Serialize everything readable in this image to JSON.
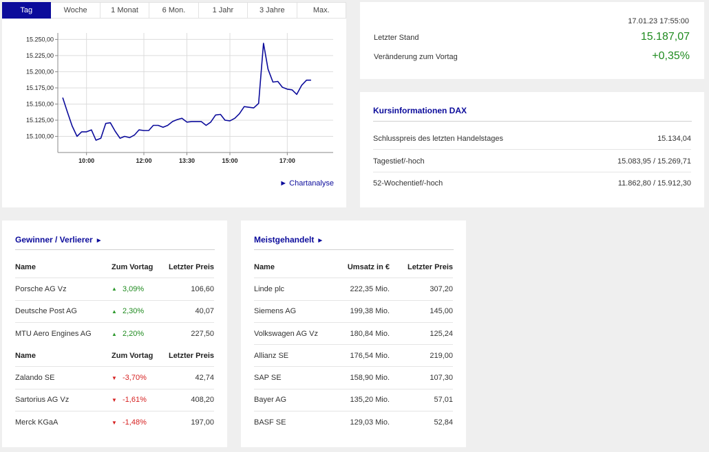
{
  "chart": {
    "tabs": [
      {
        "label": "Tag",
        "active": true
      },
      {
        "label": "Woche",
        "active": false
      },
      {
        "label": "1 Monat",
        "active": false
      },
      {
        "label": "6 Mon.",
        "active": false
      },
      {
        "label": "1 Jahr",
        "active": false
      },
      {
        "label": "3 Jahre",
        "active": false
      },
      {
        "label": "Max.",
        "active": false
      }
    ],
    "link_label": "Chartanalyse",
    "link_arrow": "►",
    "line_color": "#0b0b9b"
  },
  "chart_data": {
    "type": "line",
    "x_unit": "time of day (hours)",
    "xlim": [
      9.0,
      18.6
    ],
    "ylim": [
      15075,
      15260
    ],
    "xticks": [
      {
        "value": 10.0,
        "label": "10:00"
      },
      {
        "value": 12.0,
        "label": "12:00"
      },
      {
        "value": 13.5,
        "label": "13:30"
      },
      {
        "value": 15.0,
        "label": "15:00"
      },
      {
        "value": 17.0,
        "label": "17:00"
      }
    ],
    "yticks": [
      {
        "value": 15100,
        "label": "15.100,00"
      },
      {
        "value": 15125,
        "label": "15.125,00"
      },
      {
        "value": 15150,
        "label": "15.150,00"
      },
      {
        "value": 15175,
        "label": "15.175,00"
      },
      {
        "value": 15200,
        "label": "15.200,00"
      },
      {
        "value": 15225,
        "label": "15.225,00"
      },
      {
        "value": 15250,
        "label": "15.250,00"
      }
    ],
    "grid": true,
    "series": [
      {
        "x": [
          9.17,
          9.33,
          9.5,
          9.67,
          9.83,
          10.0,
          10.17,
          10.33,
          10.5,
          10.67,
          10.83,
          11.0,
          11.17,
          11.33,
          11.5,
          11.67,
          11.83,
          12.0,
          12.17,
          12.33,
          12.5,
          12.67,
          12.83,
          13.0,
          13.17,
          13.33,
          13.5,
          13.67,
          13.83,
          14.0,
          14.17,
          14.33,
          14.5,
          14.67,
          14.83,
          15.0,
          15.17,
          15.33,
          15.5,
          15.67,
          15.83,
          16.0,
          16.17,
          16.33,
          16.5,
          16.67,
          16.83,
          17.0,
          17.17,
          17.33,
          17.5,
          17.67,
          17.83
        ],
        "y": [
          15160,
          15138,
          15116,
          15100,
          15107,
          15107,
          15110,
          15094,
          15097,
          15120,
          15121,
          15108,
          15097,
          15100,
          15098,
          15102,
          15110,
          15109,
          15109,
          15117,
          15117,
          15114,
          15117,
          15123,
          15126,
          15128,
          15122,
          15123,
          15123,
          15123,
          15117,
          15122,
          15133,
          15134,
          15125,
          15124,
          15128,
          15135,
          15146,
          15145,
          15144,
          15151,
          15244,
          15204,
          15184,
          15185,
          15176,
          15173,
          15172,
          15165,
          15179,
          15187,
          15187
        ]
      }
    ]
  },
  "quote": {
    "timestamp": "17.01.23 17:55:00",
    "last_label": "Letzter Stand",
    "last_value": "15.187,07",
    "change_label": "Veränderung zum Vortag",
    "change_value": "+0,35%",
    "positive_color": "#1e8a1e"
  },
  "info": {
    "title": "Kursinformationen DAX",
    "rows": [
      {
        "label": "Schlusspreis des letzten Handelstages",
        "value": "15.134,04"
      },
      {
        "label": "Tagestief/-hoch",
        "value": "15.083,95 / 15.269,71"
      },
      {
        "label": "52-Wochentief/-hoch",
        "value": "11.862,80 / 15.912,30"
      }
    ]
  },
  "gainers_losers": {
    "title": "Gewinner / Verlierer",
    "arrow": "►",
    "headers": {
      "name": "Name",
      "change": "Zum Vortag",
      "price": "Letzter Preis"
    },
    "gainers": [
      {
        "name": "Porsche AG Vz",
        "change": "3,09%",
        "price": "106,60"
      },
      {
        "name": "Deutsche Post AG",
        "change": "2,30%",
        "price": "40,07"
      },
      {
        "name": "MTU Aero Engines AG",
        "change": "2,20%",
        "price": "227,50"
      }
    ],
    "losers": [
      {
        "name": "Zalando SE",
        "change": "-3,70%",
        "price": "42,74"
      },
      {
        "name": "Sartorius AG Vz",
        "change": "-1,61%",
        "price": "408,20"
      },
      {
        "name": "Merck KGaA",
        "change": "-1,48%",
        "price": "197,00"
      }
    ],
    "up_glyph": "▲",
    "down_glyph": "▼",
    "up_color": "#1e8a1e",
    "down_color": "#d62020"
  },
  "most_traded": {
    "title": "Meistgehandelt",
    "arrow": "►",
    "headers": {
      "name": "Name",
      "turnover": "Umsatz in €",
      "price": "Letzter Preis"
    },
    "rows": [
      {
        "name": "Linde plc",
        "turnover": "222,35 Mio.",
        "price": "307,20"
      },
      {
        "name": "Siemens AG",
        "turnover": "199,38 Mio.",
        "price": "145,00"
      },
      {
        "name": "Volkswagen AG Vz",
        "turnover": "180,84 Mio.",
        "price": "125,24"
      },
      {
        "name": "Allianz SE",
        "turnover": "176,54 Mio.",
        "price": "219,00"
      },
      {
        "name": "SAP SE",
        "turnover": "158,90 Mio.",
        "price": "107,30"
      },
      {
        "name": "Bayer AG",
        "turnover": "135,20 Mio.",
        "price": "57,01"
      },
      {
        "name": "BASF SE",
        "turnover": "129,03 Mio.",
        "price": "52,84"
      }
    ]
  }
}
